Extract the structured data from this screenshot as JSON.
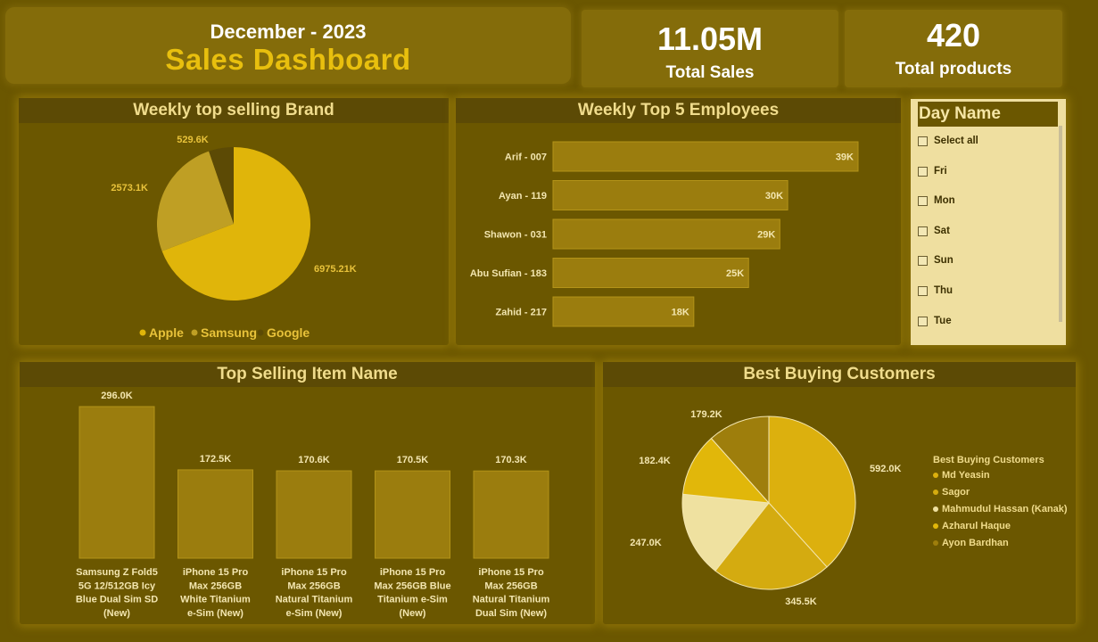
{
  "header": {
    "period": "December - 2023",
    "title": "Sales Dashboard"
  },
  "kpis": [
    {
      "value": "11.05M",
      "label": "Total Sales"
    },
    {
      "value": "420",
      "label": "Total products"
    }
  ],
  "colors": {
    "bg": "#6b5700",
    "title_band": "#5c4a05",
    "accent": "#e0b50a",
    "bar": "#9b7d0e",
    "text_light": "#f0dc8c"
  },
  "slicer": {
    "title": "Day Name",
    "items": [
      "Select all",
      "Fri",
      "Mon",
      "Sat",
      "Sun",
      "Thu",
      "Tue"
    ]
  },
  "chart_data": [
    {
      "type": "pie",
      "title": "Weekly top selling Brand",
      "categories": [
        "Apple",
        "Samsung",
        "Google"
      ],
      "values": [
        6975.21,
        2573.1,
        529.6
      ],
      "data_labels": [
        "6975.21K",
        "2573.1K",
        "529.6K"
      ],
      "colors": [
        "#e0b50a",
        "#bf9f24",
        "#5c4a05"
      ],
      "legend": "bottom"
    },
    {
      "type": "bar",
      "orientation": "horizontal",
      "title": "Weekly Top 5 Employees",
      "categories": [
        "Arif - 007",
        "Ayan - 119",
        "Shawon - 031",
        "Abu Sufian - 183",
        "Zahid - 217"
      ],
      "values": [
        39,
        30,
        29,
        25,
        18
      ],
      "data_labels": [
        "39K",
        "30K",
        "29K",
        "25K",
        "18K"
      ]
    },
    {
      "type": "bar",
      "title": "Top Selling Item Name",
      "categories": [
        "Samsung Z Fold5 5G 12/512GB Icy Blue Dual Sim SD (New)",
        "iPhone 15 Pro Max 256GB White Titanium e-Sim (New)",
        "iPhone 15 Pro Max 256GB Natural Titanium e-Sim (New)",
        "iPhone 15 Pro Max 256GB Blue Titanium e-Sim (New)",
        "iPhone 15 Pro Max 256GB Natural Titanium Dual Sim (New)"
      ],
      "category_lines": [
        [
          "Samsung Z Fold5",
          "5G 12/512GB Icy",
          "Blue Dual Sim SD",
          "(New)"
        ],
        [
          "iPhone 15 Pro",
          "Max 256GB",
          "White Titanium",
          "e-Sim (New)"
        ],
        [
          "iPhone 15 Pro",
          "Max 256GB",
          "Natural Titanium",
          "e-Sim (New)"
        ],
        [
          "iPhone 15 Pro",
          "Max 256GB Blue",
          "Titanium e-Sim",
          "(New)"
        ],
        [
          "iPhone 15 Pro",
          "Max 256GB",
          "Natural Titanium",
          "Dual Sim (New)"
        ]
      ],
      "values": [
        296.0,
        172.5,
        170.6,
        170.5,
        170.3
      ],
      "data_labels": [
        "296.0K",
        "172.5K",
        "170.6K",
        "170.5K",
        "170.3K"
      ]
    },
    {
      "type": "pie",
      "title": "Best Buying Customers",
      "legend_title": "Best Buying Customers",
      "categories": [
        "Md Yeasin",
        "Sagor",
        "Mahmudul Hassan (Kanak)",
        "Azharul Haque",
        "Ayon Bardhan"
      ],
      "values": [
        592.0,
        345.5,
        247.0,
        182.4,
        179.2
      ],
      "data_labels": [
        "592.0K",
        "345.5K",
        "247.0K",
        "182.4K",
        "179.2K"
      ],
      "colors": [
        "#dcb00e",
        "#d4ab10",
        "#efe1a0",
        "#e1b70a",
        "#9e7e0c"
      ],
      "legend": "right"
    }
  ]
}
